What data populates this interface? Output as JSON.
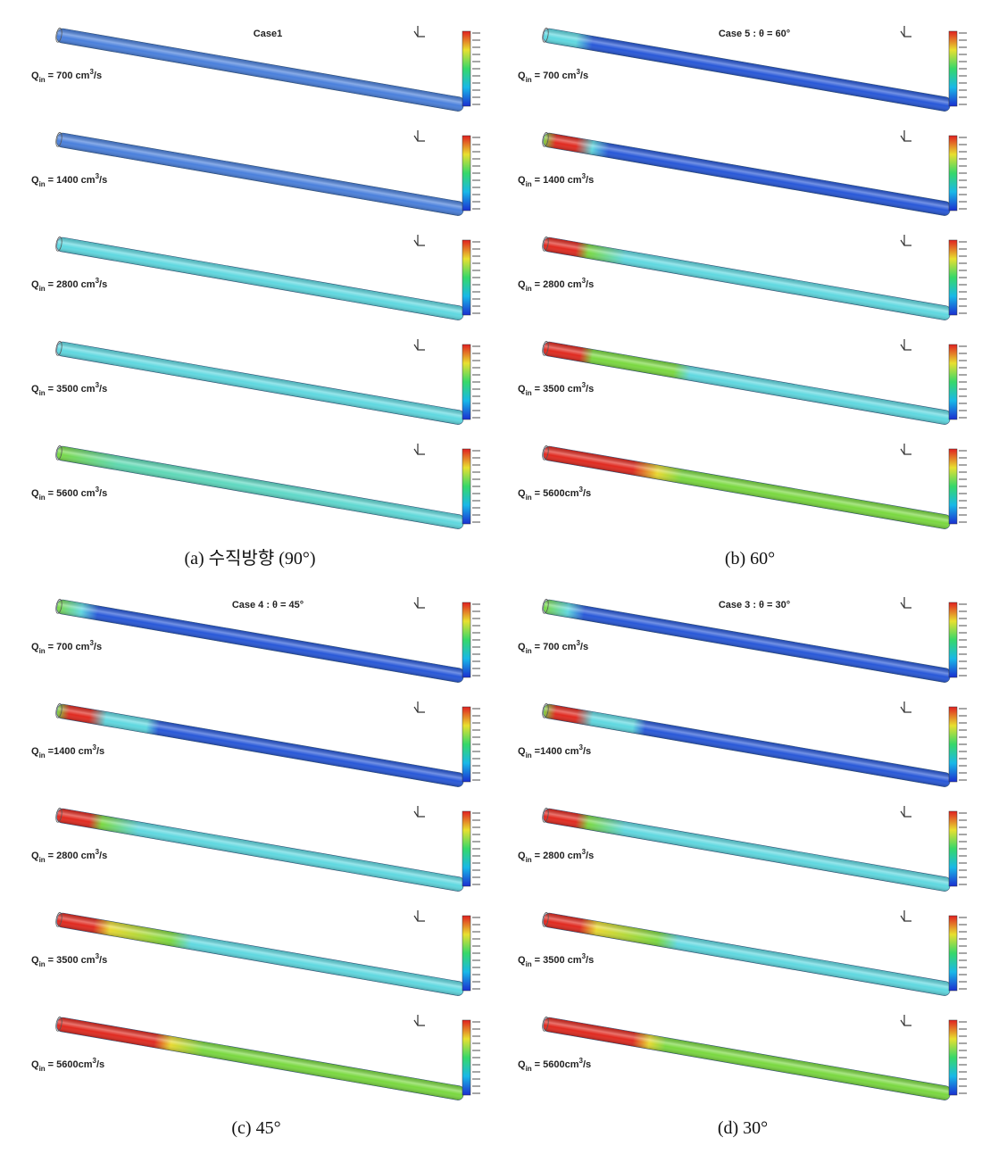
{
  "symbol": {
    "q": "Q",
    "sub": "in",
    "sup": "3",
    "unit": "/s"
  },
  "panels": [
    {
      "title": "Case1",
      "caption": "(a)  수직방향 (90°)",
      "rates": [
        "= 700 cm",
        "= 1400 cm",
        "= 2800 cm",
        "= 3500 cm",
        "= 5600 cm"
      ]
    },
    {
      "title": "Case 5 : θ = 60°",
      "caption": "(b)  60°",
      "rates": [
        "= 700 cm",
        "= 1400 cm",
        "= 2800 cm",
        "= 3500 cm",
        "= 5600cm"
      ]
    },
    {
      "title": "Case 4 : θ = 45°",
      "caption": "(c)  45°",
      "rates": [
        "= 700 cm",
        "=1400 cm",
        "= 2800 cm",
        "= 3500 cm",
        "= 5600cm"
      ]
    },
    {
      "title": "Case 3 : θ = 30°",
      "caption": "(d)  30°",
      "rates": [
        "= 700 cm",
        "=1400 cm",
        "= 2800 cm",
        "= 3500 cm",
        "= 5600cm"
      ]
    }
  ]
}
